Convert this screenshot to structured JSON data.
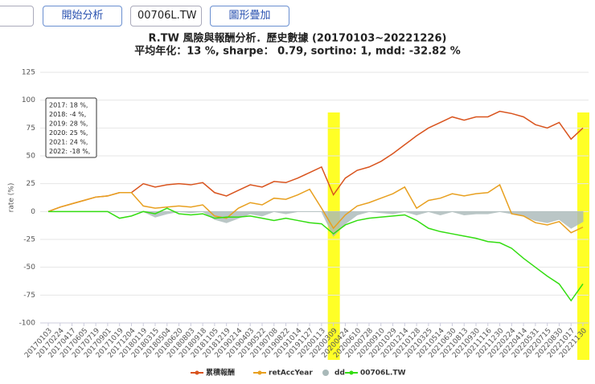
{
  "toolbar": {
    "button_analyze": "開始分析",
    "symbol_input": "00706L.TW",
    "button_overlay": "圖形疊加"
  },
  "chart_data": {
    "type": "line",
    "title": "R.TW 風險與報酬分析．歷史數據 (20170103~20221226)",
    "subtitle": "平均年化：13 %, sharpe： 0.79, sortino: 1, mdd: -32.82 %",
    "y_label": "rate (%)",
    "annotations": [
      "2017: 18 %,",
      "2018: -4 %,",
      "2019: 28 %,",
      "2020: 25 %,",
      "2021: 24 %,",
      "2022: -18 %,"
    ],
    "highlight_x": [
      "20200309",
      "20221130"
    ],
    "x": [
      "20170103",
      "20170224",
      "20170417",
      "20170605",
      "20170719",
      "20170901",
      "20171019",
      "20171204",
      "20180119",
      "20180315",
      "20180504",
      "20180620",
      "20180803",
      "20180918",
      "20181105",
      "20181219",
      "20190214",
      "20190403",
      "20190522",
      "20190708",
      "20190822",
      "20191014",
      "20191127",
      "20200113",
      "20200309",
      "20200424",
      "20200610",
      "20200728",
      "20200910",
      "20201029",
      "20201214",
      "20210128",
      "20210325",
      "20210514",
      "20210630",
      "20210813",
      "20210930",
      "20211116",
      "20211230",
      "20220224",
      "20220414",
      "20220531",
      "20220715",
      "20220830",
      "20221017",
      "20221130"
    ],
    "series": [
      {
        "name": "累積報酬",
        "color": "#d9541e",
        "kind": "line",
        "values": [
          0,
          4,
          7,
          10,
          13,
          14,
          17,
          17,
          25,
          22,
          24,
          25,
          24,
          26,
          17,
          14,
          19,
          24,
          22,
          27,
          26,
          30,
          35,
          40,
          15,
          30,
          37,
          40,
          45,
          52,
          60,
          68,
          75,
          80,
          85,
          82,
          85,
          85,
          90,
          88,
          85,
          78,
          75,
          80,
          65,
          75
        ]
      },
      {
        "name": "retAccYear",
        "color": "#e8a020",
        "kind": "line",
        "values": [
          0,
          4,
          7,
          10,
          13,
          14,
          17,
          17,
          5,
          3,
          4,
          5,
          4,
          6,
          -4,
          -6,
          3,
          8,
          6,
          12,
          11,
          15,
          20,
          3,
          -15,
          -3,
          5,
          8,
          12,
          16,
          22,
          3,
          10,
          12,
          16,
          14,
          16,
          17,
          24,
          -2,
          -4,
          -10,
          -12,
          -9,
          -19,
          -14
        ]
      },
      {
        "name": "dd",
        "color": "#a9b9b9",
        "kind": "area",
        "values": [
          0,
          0,
          0,
          0,
          0,
          0,
          0,
          0,
          0,
          -5,
          -2,
          0,
          -1,
          0,
          -7,
          -10,
          -6,
          -2,
          -4,
          0,
          -2,
          0,
          0,
          0,
          -22,
          -11,
          -3,
          0,
          -1,
          -2,
          0,
          -3,
          0,
          -3,
          0,
          -3,
          -2,
          -2,
          0,
          -2,
          -4,
          -8,
          -10,
          -7,
          -15,
          -9
        ]
      },
      {
        "name": "00706L.TW",
        "color": "#33dd11",
        "kind": "line",
        "values": [
          0,
          0,
          0,
          0,
          0,
          0,
          -6,
          -4,
          0,
          -2,
          3,
          -2,
          -3,
          -2,
          -6,
          -5,
          -5,
          -4,
          -6,
          -8,
          -6,
          -8,
          -10,
          -11,
          -20,
          -12,
          -8,
          -6,
          -5,
          -4,
          -3,
          -8,
          -15,
          -18,
          -20,
          -22,
          -24,
          -27,
          -28,
          -33,
          -42,
          -50,
          -58,
          -65,
          -80,
          -65
        ]
      }
    ],
    "ylim": [
      -100,
      125
    ],
    "yticks": [
      -100,
      -75,
      -50,
      -25,
      0,
      25,
      50,
      75,
      100,
      125
    ],
    "grid": true
  }
}
